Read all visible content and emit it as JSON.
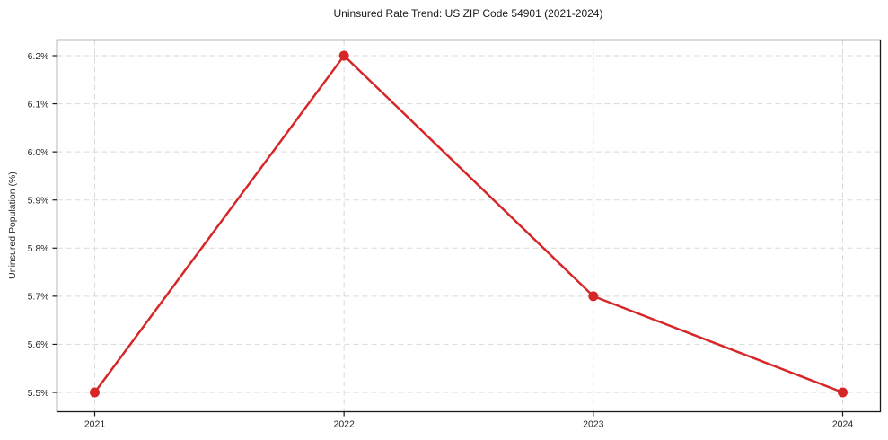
{
  "chart_data": {
    "type": "line",
    "title": "Uninsured Rate Trend: US ZIP Code 54901 (2021-2024)",
    "xlabel": "",
    "ylabel": "Uninsured Population (%)",
    "x": [
      2021,
      2022,
      2023,
      2024
    ],
    "x_tick_labels": [
      "2021",
      "2022",
      "2023",
      "2024"
    ],
    "series": [
      {
        "name": "uninsured-rate",
        "values": [
          5.5,
          6.2,
          5.7,
          5.5
        ],
        "color": "#d62728",
        "marker": "circle"
      }
    ],
    "y_ticks": [
      5.5,
      5.6,
      5.7,
      5.8,
      5.9,
      6.0,
      6.1,
      6.2
    ],
    "y_tick_labels": [
      "5.5%",
      "5.6%",
      "5.7%",
      "5.8%",
      "5.9%",
      "6.0%",
      "6.1%",
      "6.2%"
    ],
    "ylim": [
      5.5,
      6.2
    ],
    "grid": true,
    "grid_style": "dashed",
    "grid_color": "#d9d9d9",
    "spine_color": "#1a1a1a",
    "background_color": "#ffffff",
    "legend": "none"
  }
}
